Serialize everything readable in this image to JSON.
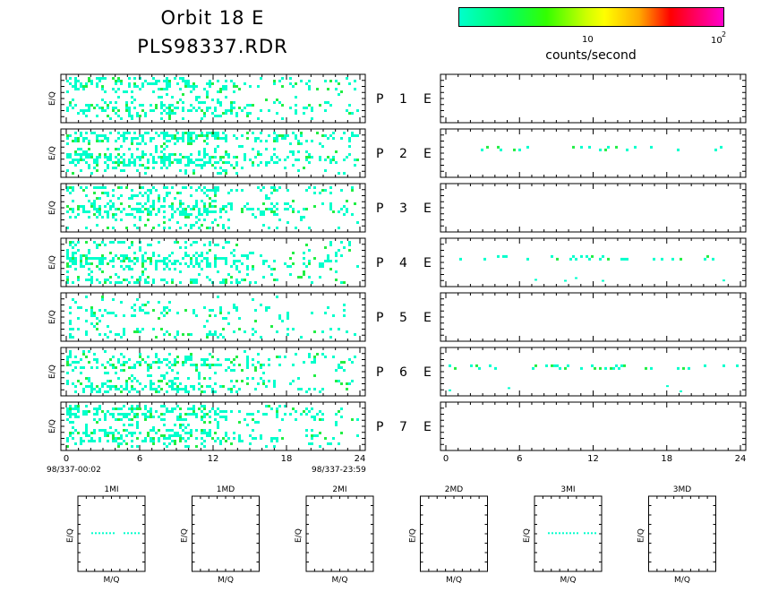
{
  "title": {
    "line1": "Orbit 18 E",
    "line2": "PLS98337.RDR"
  },
  "colorbar": {
    "tick_labels": [
      "10",
      "10",
      "2"
    ],
    "unit_label": "counts/second",
    "scale": "log",
    "gradient_colors": [
      "#00ffcc",
      "#00ff66",
      "#33ff00",
      "#ccff00",
      "#ffff00",
      "#ffaa00",
      "#ff0000",
      "#ff0066",
      "#ff00cc"
    ]
  },
  "chart_data": [
    {
      "type": "heatmap",
      "description_of_grid": "time-energy spectrograms, left column (PLS) and right column (E), 7 rows P 1 .. P 7",
      "ylabel": "E/Q",
      "x_ticks": [
        "0",
        "6",
        "12",
        "18",
        "24"
      ],
      "xlim": [
        0,
        24
      ],
      "start_time_label": "98/337-00:02",
      "end_time_label": "98/337-23:59",
      "rows": [
        {
          "label": "P",
          "number": "1",
          "channel": "E",
          "left_density": 0.38,
          "right_density": 0.0
        },
        {
          "label": "P",
          "number": "2",
          "channel": "E",
          "left_density": 0.55,
          "right_density": 0.04
        },
        {
          "label": "P",
          "number": "3",
          "channel": "E",
          "left_density": 0.48,
          "right_density": 0.0
        },
        {
          "label": "P",
          "number": "4",
          "channel": "E",
          "left_density": 0.5,
          "right_density": 0.06
        },
        {
          "label": "P",
          "number": "5",
          "channel": "E",
          "left_density": 0.22,
          "right_density": 0.0
        },
        {
          "label": "P",
          "number": "6",
          "channel": "E",
          "left_density": 0.4,
          "right_density": 0.09
        },
        {
          "label": "P",
          "number": "7",
          "channel": "E",
          "left_density": 0.45,
          "right_density": 0.0
        }
      ],
      "dot_color": "#00ffcc",
      "dot_color_alt": "#22ee44"
    },
    {
      "type": "scatter",
      "description_of_grid": "mass-per-charge panels",
      "xlabel": "M/Q",
      "ylabel": "E/Q",
      "panels": [
        {
          "title": "1MI",
          "has_data": true
        },
        {
          "title": "1MD",
          "has_data": false
        },
        {
          "title": "2MI",
          "has_data": false
        },
        {
          "title": "2MD",
          "has_data": false
        },
        {
          "title": "3MI",
          "has_data": true
        },
        {
          "title": "3MD",
          "has_data": false
        }
      ]
    }
  ]
}
